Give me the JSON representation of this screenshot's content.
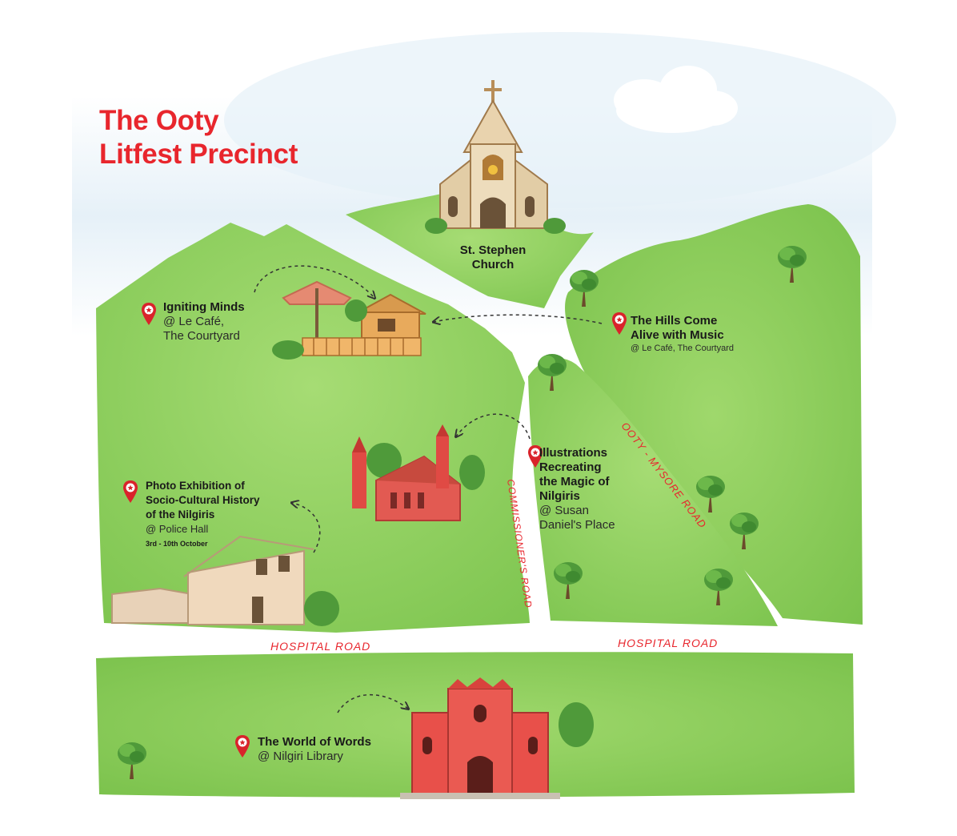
{
  "map": {
    "title_line1": "The Ooty",
    "title_line2": "Litfest Precinct",
    "colors": {
      "title": "#e8262d",
      "grass": "#8bcf5a",
      "grass_dark": "#6fbb45",
      "sky": "#dcebf5",
      "road_label": "#e8262d",
      "pin": "#d9232b"
    },
    "landmark_church": "St. Stephen Church",
    "venues": [
      {
        "title": "Igniting Minds",
        "venue": "@ Le Café,",
        "venue2": "The Courtyard"
      },
      {
        "title1": "The Hills Come",
        "title2": "Alive with Music",
        "venue": "@ Le Café, The Courtyard"
      },
      {
        "title1": "Illustrations",
        "title2": "Recreating",
        "title3": "the Magic of",
        "title4": "Nilgiris",
        "venue1": "@ Susan",
        "venue2": "Daniel's Place"
      },
      {
        "title1": "Photo Exhibition of",
        "title2": "Socio-Cultural History",
        "title3": "of the Nilgiris",
        "venue": "@ Police Hall",
        "dates": "3rd - 10th October"
      },
      {
        "title": "The World of Words",
        "venue": "@ Nilgiri Library"
      }
    ],
    "roads": {
      "hospital_left": "HOSPITAL  ROAD",
      "hospital_right": "HOSPITAL  ROAD",
      "commissioners": "COMMISSIONER'S ROAD",
      "ooty_mysore": "OOTY - MYSORE ROAD"
    },
    "icons": [
      "location-pin-icon",
      "church-icon",
      "cafe-hut-icon",
      "parasol-icon",
      "red-church-icon",
      "police-hall-icon",
      "library-icon",
      "tree-icon",
      "cloud-icon"
    ]
  }
}
